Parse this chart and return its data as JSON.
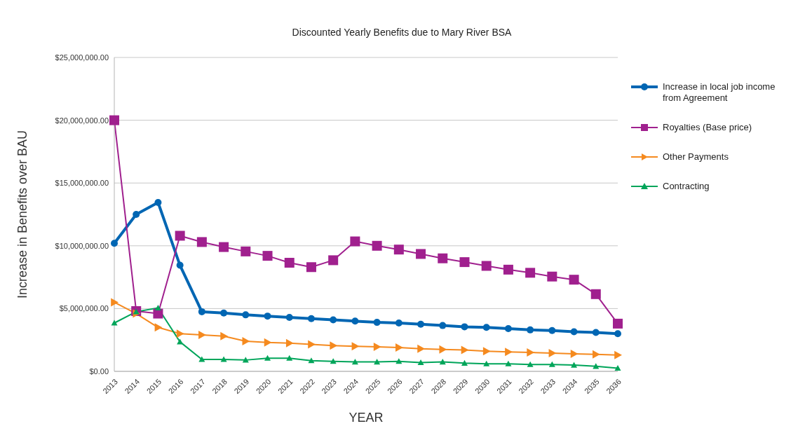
{
  "chart_data": {
    "type": "line",
    "title": "Discounted Yearly Benefits due to Mary River BSA",
    "xlabel": "YEAR",
    "ylabel": "Increase in Benefits over BAU",
    "categories": [
      "2013",
      "2014",
      "2015",
      "2016",
      "2017",
      "2018",
      "2019",
      "2020",
      "2021",
      "2022",
      "2023",
      "2024",
      "2025",
      "2026",
      "2027",
      "2028",
      "2029",
      "2030",
      "2031",
      "2032",
      "2033",
      "2034",
      "2035",
      "2036"
    ],
    "series": [
      {
        "name": "Increase in local job income from Agreement",
        "color": "#0066b3",
        "marker": "circle",
        "values": [
          10200000,
          12500000,
          13450000,
          8450000,
          4750000,
          4650000,
          4500000,
          4400000,
          4300000,
          4200000,
          4100000,
          4000000,
          3900000,
          3850000,
          3750000,
          3650000,
          3550000,
          3500000,
          3400000,
          3300000,
          3250000,
          3150000,
          3100000,
          3000000
        ]
      },
      {
        "name": "Royalties (Base price)",
        "color": "#a0208e",
        "marker": "square",
        "values": [
          20000000,
          4800000,
          4600000,
          10800000,
          10300000,
          9900000,
          9550000,
          9200000,
          8650000,
          8300000,
          8850000,
          10350000,
          10000000,
          9700000,
          9350000,
          9000000,
          8700000,
          8400000,
          8100000,
          7850000,
          7550000,
          7300000,
          6150000,
          3800000
        ]
      },
      {
        "name": "Other Payments",
        "color": "#f58a1f",
        "marker": "triangle-right",
        "values": [
          5500000,
          4600000,
          3500000,
          3000000,
          2900000,
          2800000,
          2400000,
          2300000,
          2250000,
          2150000,
          2050000,
          2000000,
          1950000,
          1900000,
          1800000,
          1750000,
          1700000,
          1600000,
          1550000,
          1500000,
          1450000,
          1400000,
          1350000,
          1300000
        ]
      },
      {
        "name": "Contracting",
        "color": "#00a55a",
        "marker": "triangle",
        "values": [
          3850000,
          4750000,
          5050000,
          2350000,
          950000,
          950000,
          900000,
          1050000,
          1050000,
          850000,
          800000,
          750000,
          750000,
          800000,
          700000,
          750000,
          650000,
          600000,
          600000,
          550000,
          550000,
          500000,
          400000,
          250000
        ]
      }
    ],
    "ylim": [
      0,
      25000000
    ],
    "yticks": [
      {
        "value": 0,
        "label": "$0.00"
      },
      {
        "value": 5000000,
        "label": "$5,000,000.00"
      },
      {
        "value": 10000000,
        "label": "$10,000,000.00"
      },
      {
        "value": 15000000,
        "label": "$15,000,000.00"
      },
      {
        "value": 20000000,
        "label": "$20,000,000.00"
      },
      {
        "value": 25000000,
        "label": "$25,000,000.00"
      }
    ],
    "grid": "y",
    "legend": "right",
    "line_style": "solid"
  }
}
